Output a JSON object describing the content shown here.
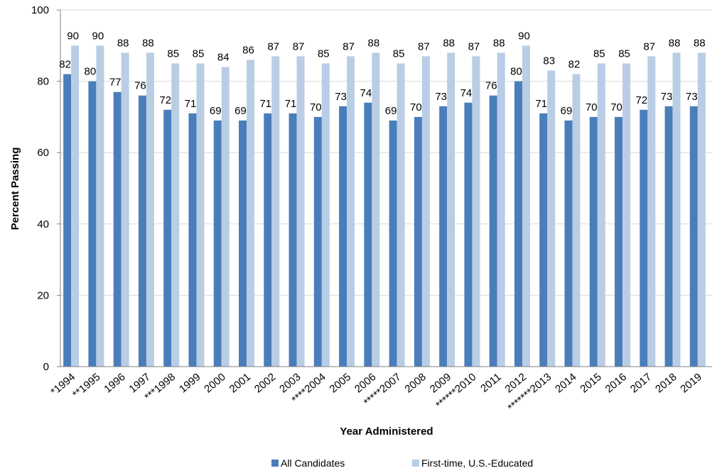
{
  "chart_data": {
    "type": "bar",
    "title": "",
    "xlabel": "Year Administered",
    "ylabel": "Percent Passing",
    "ylim": [
      0,
      100
    ],
    "yticks": [
      0,
      20,
      40,
      60,
      80,
      100
    ],
    "grid": true,
    "legend_position": "bottom",
    "categories": [
      "*1994",
      "**1995",
      "1996",
      "1997",
      "***1998",
      "1999",
      "2000",
      "2001",
      "2002",
      "2003",
      "****2004",
      "2005",
      "2006",
      "*****2007",
      "2008",
      "2009",
      "******2010",
      "2011",
      "2012",
      "*******2013",
      "2014",
      "2015",
      "2016",
      "2017",
      "2018",
      "2019"
    ],
    "series": [
      {
        "name": "All Candidates",
        "color": "#4a7ebb",
        "values": [
          82,
          80,
          77,
          76,
          72,
          71,
          69,
          69,
          71,
          71,
          70,
          73,
          74,
          69,
          70,
          73,
          74,
          76,
          80,
          71,
          69,
          70,
          70,
          72,
          73,
          73
        ]
      },
      {
        "name": "First-time, U.S.-Educated",
        "color": "#b9cde5",
        "values": [
          90,
          90,
          88,
          88,
          85,
          85,
          84,
          86,
          87,
          87,
          85,
          87,
          88,
          85,
          87,
          88,
          87,
          88,
          90,
          83,
          82,
          85,
          85,
          87,
          88,
          88
        ]
      }
    ]
  }
}
